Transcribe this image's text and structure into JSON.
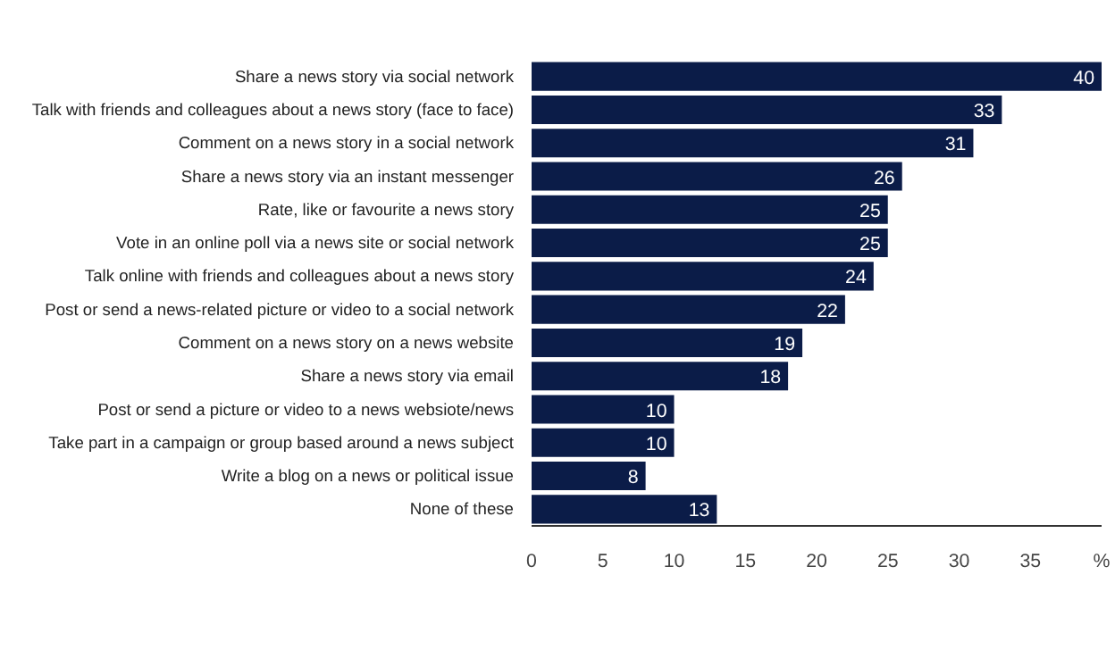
{
  "chart_data": {
    "type": "bar",
    "orientation": "horizontal",
    "categories": [
      "Share a news story via social network",
      "Talk with friends and colleagues about a news story (face to face)",
      "Comment on a news story in a social network",
      "Share a news story via an instant messenger",
      "Rate, like or favourite a news story",
      "Vote in an online poll via a news site or social network",
      "Talk online with friends and colleagues about a news story",
      "Post or send a news-related picture or video to a social network",
      "Comment on a news story on a news website",
      "Share a news story via email",
      "Post or send a picture or video to a news websiote/news",
      "Take part in a campaign or group based around a news subject",
      "Write a blog on a news or political issue",
      "None of these"
    ],
    "values": [
      40,
      33,
      31,
      26,
      25,
      25,
      24,
      22,
      19,
      18,
      10,
      10,
      8,
      13
    ],
    "color": "#0b1c48",
    "data_labels": true,
    "xlim": [
      0,
      40
    ],
    "xticks": [
      0,
      5,
      10,
      15,
      20,
      25,
      30,
      35,
      {
        "value": 40,
        "label": "%"
      }
    ],
    "grid": false
  }
}
